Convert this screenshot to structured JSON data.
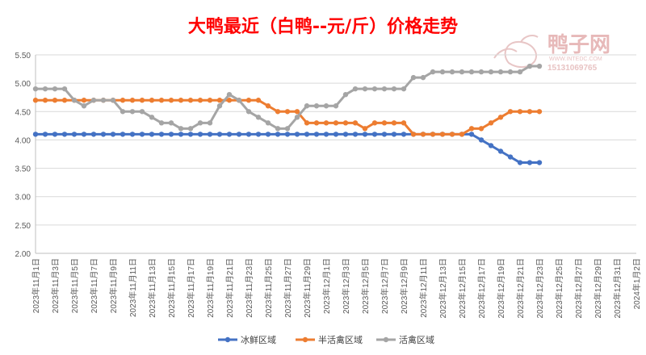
{
  "chart_data": {
    "type": "line",
    "title": "大鸭最近（白鸭--元/斤）价格走势",
    "ylim": [
      2.0,
      5.5
    ],
    "yticks": [
      "5.50",
      "5.00",
      "4.50",
      "4.00",
      "3.50",
      "3.00",
      "2.50",
      "2.00"
    ],
    "x_start": "2023-11-01",
    "x_end": "2024-01-02",
    "x_tick_labels": [
      "2023年11月1日",
      "2023年11月3日",
      "2023年11月5日",
      "2023年11月7日",
      "2023年11月9日",
      "2023年11月11日",
      "2023年11月13日",
      "2023年11月15日",
      "2023年11月17日",
      "2023年11月19日",
      "2023年11月21日",
      "2023年11月23日",
      "2023年11月25日",
      "2023年11月27日",
      "2023年11月29日",
      "2023年12月1日",
      "2023年12月3日",
      "2023年12月5日",
      "2023年12月7日",
      "2023年12月9日",
      "2023年12月11日",
      "2023年12月13日",
      "2023年12月15日",
      "2023年12月17日",
      "2023年12月19日",
      "2023年12月21日",
      "2023年12月23日",
      "2023年12月25日",
      "2023年12月27日",
      "2023年12月29日",
      "2023年12月31日",
      "2024年1月2日"
    ],
    "grid": true,
    "legend_position": "bottom",
    "series": [
      {
        "name": "冰鲜区域",
        "color": "#4472c4",
        "points": [
          [
            "2023-11-01",
            4.1
          ],
          [
            "2023-11-02",
            4.1
          ],
          [
            "2023-11-03",
            4.1
          ],
          [
            "2023-11-04",
            4.1
          ],
          [
            "2023-11-05",
            4.1
          ],
          [
            "2023-11-06",
            4.1
          ],
          [
            "2023-11-07",
            4.1
          ],
          [
            "2023-11-08",
            4.1
          ],
          [
            "2023-11-09",
            4.1
          ],
          [
            "2023-11-10",
            4.1
          ],
          [
            "2023-11-11",
            4.1
          ],
          [
            "2023-11-12",
            4.1
          ],
          [
            "2023-11-13",
            4.1
          ],
          [
            "2023-11-14",
            4.1
          ],
          [
            "2023-11-15",
            4.1
          ],
          [
            "2023-11-16",
            4.1
          ],
          [
            "2023-11-17",
            4.1
          ],
          [
            "2023-11-18",
            4.1
          ],
          [
            "2023-11-19",
            4.1
          ],
          [
            "2023-11-20",
            4.1
          ],
          [
            "2023-11-21",
            4.1
          ],
          [
            "2023-11-22",
            4.1
          ],
          [
            "2023-11-23",
            4.1
          ],
          [
            "2023-11-24",
            4.1
          ],
          [
            "2023-11-25",
            4.1
          ],
          [
            "2023-11-26",
            4.1
          ],
          [
            "2023-11-27",
            4.1
          ],
          [
            "2023-11-28",
            4.1
          ],
          [
            "2023-11-29",
            4.1
          ],
          [
            "2023-11-30",
            4.1
          ],
          [
            "2023-12-01",
            4.1
          ],
          [
            "2023-12-02",
            4.1
          ],
          [
            "2023-12-03",
            4.1
          ],
          [
            "2023-12-04",
            4.1
          ],
          [
            "2023-12-05",
            4.1
          ],
          [
            "2023-12-06",
            4.1
          ],
          [
            "2023-12-07",
            4.1
          ],
          [
            "2023-12-08",
            4.1
          ],
          [
            "2023-12-09",
            4.1
          ],
          [
            "2023-12-10",
            4.1
          ],
          [
            "2023-12-11",
            4.1
          ],
          [
            "2023-12-12",
            4.1
          ],
          [
            "2023-12-13",
            4.1
          ],
          [
            "2023-12-14",
            4.1
          ],
          [
            "2023-12-15",
            4.1
          ],
          [
            "2023-12-16",
            4.1
          ],
          [
            "2023-12-17",
            4.0
          ],
          [
            "2023-12-18",
            3.9
          ],
          [
            "2023-12-19",
            3.8
          ],
          [
            "2023-12-20",
            3.7
          ],
          [
            "2023-12-21",
            3.6
          ],
          [
            "2023-12-22",
            3.6
          ],
          [
            "2023-12-23",
            3.6
          ]
        ]
      },
      {
        "name": "半活禽区域",
        "color": "#ed7d31",
        "points": [
          [
            "2023-11-01",
            4.7
          ],
          [
            "2023-11-02",
            4.7
          ],
          [
            "2023-11-03",
            4.7
          ],
          [
            "2023-11-04",
            4.7
          ],
          [
            "2023-11-05",
            4.7
          ],
          [
            "2023-11-06",
            4.7
          ],
          [
            "2023-11-07",
            4.7
          ],
          [
            "2023-11-08",
            4.7
          ],
          [
            "2023-11-09",
            4.7
          ],
          [
            "2023-11-10",
            4.7
          ],
          [
            "2023-11-11",
            4.7
          ],
          [
            "2023-11-12",
            4.7
          ],
          [
            "2023-11-13",
            4.7
          ],
          [
            "2023-11-14",
            4.7
          ],
          [
            "2023-11-15",
            4.7
          ],
          [
            "2023-11-16",
            4.7
          ],
          [
            "2023-11-17",
            4.7
          ],
          [
            "2023-11-18",
            4.7
          ],
          [
            "2023-11-19",
            4.7
          ],
          [
            "2023-11-20",
            4.7
          ],
          [
            "2023-11-21",
            4.7
          ],
          [
            "2023-11-22",
            4.7
          ],
          [
            "2023-11-23",
            4.7
          ],
          [
            "2023-11-24",
            4.7
          ],
          [
            "2023-11-25",
            4.6
          ],
          [
            "2023-11-26",
            4.5
          ],
          [
            "2023-11-27",
            4.5
          ],
          [
            "2023-11-28",
            4.5
          ],
          [
            "2023-11-29",
            4.3
          ],
          [
            "2023-11-30",
            4.3
          ],
          [
            "2023-12-01",
            4.3
          ],
          [
            "2023-12-02",
            4.3
          ],
          [
            "2023-12-03",
            4.3
          ],
          [
            "2023-12-04",
            4.3
          ],
          [
            "2023-12-05",
            4.2
          ],
          [
            "2023-12-06",
            4.3
          ],
          [
            "2023-12-07",
            4.3
          ],
          [
            "2023-12-08",
            4.3
          ],
          [
            "2023-12-09",
            4.3
          ],
          [
            "2023-12-10",
            4.1
          ],
          [
            "2023-12-11",
            4.1
          ],
          [
            "2023-12-12",
            4.1
          ],
          [
            "2023-12-13",
            4.1
          ],
          [
            "2023-12-14",
            4.1
          ],
          [
            "2023-12-15",
            4.1
          ],
          [
            "2023-12-16",
            4.2
          ],
          [
            "2023-12-17",
            4.2
          ],
          [
            "2023-12-18",
            4.3
          ],
          [
            "2023-12-19",
            4.4
          ],
          [
            "2023-12-20",
            4.5
          ],
          [
            "2023-12-21",
            4.5
          ],
          [
            "2023-12-22",
            4.5
          ],
          [
            "2023-12-23",
            4.5
          ]
        ]
      },
      {
        "name": "活禽区域",
        "color": "#a5a5a5",
        "points": [
          [
            "2023-11-01",
            4.9
          ],
          [
            "2023-11-02",
            4.9
          ],
          [
            "2023-11-03",
            4.9
          ],
          [
            "2023-11-04",
            4.9
          ],
          [
            "2023-11-05",
            4.7
          ],
          [
            "2023-11-06",
            4.6
          ],
          [
            "2023-11-07",
            4.7
          ],
          [
            "2023-11-08",
            4.7
          ],
          [
            "2023-11-09",
            4.7
          ],
          [
            "2023-11-10",
            4.5
          ],
          [
            "2023-11-11",
            4.5
          ],
          [
            "2023-11-12",
            4.5
          ],
          [
            "2023-11-13",
            4.4
          ],
          [
            "2023-11-14",
            4.3
          ],
          [
            "2023-11-15",
            4.3
          ],
          [
            "2023-11-16",
            4.2
          ],
          [
            "2023-11-17",
            4.2
          ],
          [
            "2023-11-18",
            4.3
          ],
          [
            "2023-11-19",
            4.3
          ],
          [
            "2023-11-20",
            4.6
          ],
          [
            "2023-11-21",
            4.8
          ],
          [
            "2023-11-22",
            4.7
          ],
          [
            "2023-11-23",
            4.5
          ],
          [
            "2023-11-24",
            4.4
          ],
          [
            "2023-11-25",
            4.3
          ],
          [
            "2023-11-26",
            4.2
          ],
          [
            "2023-11-27",
            4.2
          ],
          [
            "2023-11-28",
            4.4
          ],
          [
            "2023-11-29",
            4.6
          ],
          [
            "2023-11-30",
            4.6
          ],
          [
            "2023-12-01",
            4.6
          ],
          [
            "2023-12-02",
            4.6
          ],
          [
            "2023-12-03",
            4.8
          ],
          [
            "2023-12-04",
            4.9
          ],
          [
            "2023-12-05",
            4.9
          ],
          [
            "2023-12-06",
            4.9
          ],
          [
            "2023-12-07",
            4.9
          ],
          [
            "2023-12-08",
            4.9
          ],
          [
            "2023-12-09",
            4.9
          ],
          [
            "2023-12-10",
            5.1
          ],
          [
            "2023-12-11",
            5.1
          ],
          [
            "2023-12-12",
            5.2
          ],
          [
            "2023-12-13",
            5.2
          ],
          [
            "2023-12-14",
            5.2
          ],
          [
            "2023-12-15",
            5.2
          ],
          [
            "2023-12-16",
            5.2
          ],
          [
            "2023-12-17",
            5.2
          ],
          [
            "2023-12-18",
            5.2
          ],
          [
            "2023-12-19",
            5.2
          ],
          [
            "2023-12-20",
            5.2
          ],
          [
            "2023-12-21",
            5.2
          ],
          [
            "2023-12-22",
            5.3
          ],
          [
            "2023-12-23",
            5.3
          ]
        ]
      }
    ]
  },
  "watermark": {
    "brand": "鸭子网",
    "url": "WWW.INTEDC.COM",
    "phone": "15131069765"
  }
}
